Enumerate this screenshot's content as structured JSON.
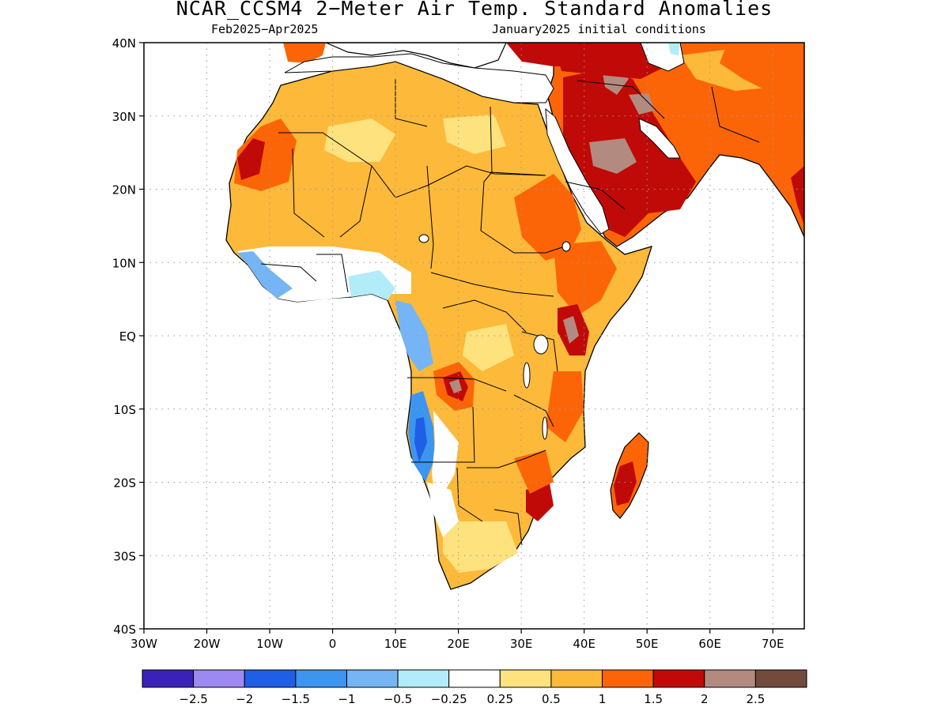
{
  "title": "NCAR_CCSM4 2−Meter Air Temp. Standard Anomalies",
  "subtitle_left": "Feb2025−Apr2025",
  "subtitle_right": "January2025 initial conditions",
  "lat_labels": [
    "40N",
    "30N",
    "20N",
    "10N",
    "EQ",
    "10S",
    "20S",
    "30S",
    "40S"
  ],
  "lon_labels": [
    "30W",
    "20W",
    "10W",
    "0",
    "10E",
    "20E",
    "30E",
    "40E",
    "50E",
    "60E",
    "70E"
  ],
  "map_extent": {
    "lon_min": -30,
    "lon_max": 75,
    "lat_min": -40,
    "lat_max": 40
  },
  "colorbar": {
    "colors": [
      "#3a22b8",
      "#9c8af2",
      "#1e5fe6",
      "#3c95ef",
      "#75b5f5",
      "#b1ecf8",
      "#ffffff",
      "#fde27e",
      "#fdb93a",
      "#fb6508",
      "#c00a07",
      "#b38a80",
      "#734a3e"
    ],
    "labels": [
      "−2.5",
      "−2",
      "−1.5",
      "−1",
      "−0.5",
      "−0.25",
      "0.25",
      "0.5",
      "1",
      "1.5",
      "2",
      "2.5"
    ]
  }
}
